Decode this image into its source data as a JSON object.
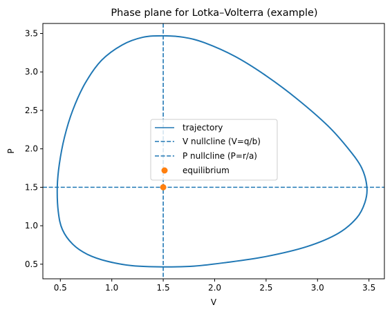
{
  "chart_data": {
    "type": "line",
    "title": "Phase plane for Lotka–Volterra (example)",
    "xlabel": "V",
    "ylabel": "P",
    "xlim": [
      0.33,
      3.65
    ],
    "ylim": [
      0.31,
      3.63
    ],
    "xticks": [
      0.5,
      1.0,
      1.5,
      2.0,
      2.5,
      3.0,
      3.5
    ],
    "xtick_labels": [
      "0.5",
      "1.0",
      "1.5",
      "2.0",
      "2.5",
      "3.0",
      "3.5"
    ],
    "yticks": [
      0.5,
      1.0,
      1.5,
      2.0,
      2.5,
      3.0,
      3.5
    ],
    "ytick_labels": [
      "0.5",
      "1.0",
      "1.5",
      "2.0",
      "2.5",
      "3.0",
      "3.5"
    ],
    "grid": false,
    "legend_position": "center",
    "colors": {
      "trajectory": "#1f77b4",
      "nullcline": "#1f77b4",
      "equilibrium": "#ff7f0e"
    },
    "series": [
      {
        "name": "trajectory",
        "style": "solid",
        "kind": "closed-orbit",
        "points": [
          [
            0.47,
            1.5
          ],
          [
            0.48,
            1.18
          ],
          [
            0.52,
            0.95
          ],
          [
            0.62,
            0.76
          ],
          [
            0.76,
            0.63
          ],
          [
            0.95,
            0.54
          ],
          [
            1.2,
            0.48
          ],
          [
            1.5,
            0.465
          ],
          [
            1.8,
            0.475
          ],
          [
            2.1,
            0.52
          ],
          [
            2.5,
            0.6
          ],
          [
            2.9,
            0.73
          ],
          [
            3.2,
            0.9
          ],
          [
            3.38,
            1.1
          ],
          [
            3.46,
            1.3
          ],
          [
            3.48,
            1.5
          ],
          [
            3.43,
            1.75
          ],
          [
            3.3,
            2.0
          ],
          [
            3.1,
            2.3
          ],
          [
            2.8,
            2.65
          ],
          [
            2.5,
            2.95
          ],
          [
            2.2,
            3.2
          ],
          [
            1.9,
            3.38
          ],
          [
            1.7,
            3.45
          ],
          [
            1.5,
            3.47
          ],
          [
            1.3,
            3.45
          ],
          [
            1.1,
            3.35
          ],
          [
            0.9,
            3.15
          ],
          [
            0.74,
            2.85
          ],
          [
            0.62,
            2.5
          ],
          [
            0.54,
            2.15
          ],
          [
            0.49,
            1.8
          ],
          [
            0.47,
            1.5
          ]
        ]
      },
      {
        "name": "V nullcline (V=q/b)",
        "style": "dashed",
        "kind": "vertical",
        "value": 1.5
      },
      {
        "name": "P nullcline (P=r/a)",
        "style": "dashed",
        "kind": "horizontal",
        "value": 1.5
      },
      {
        "name": "equilibrium",
        "style": "marker",
        "kind": "point",
        "x": 1.5,
        "y": 1.5
      }
    ]
  }
}
